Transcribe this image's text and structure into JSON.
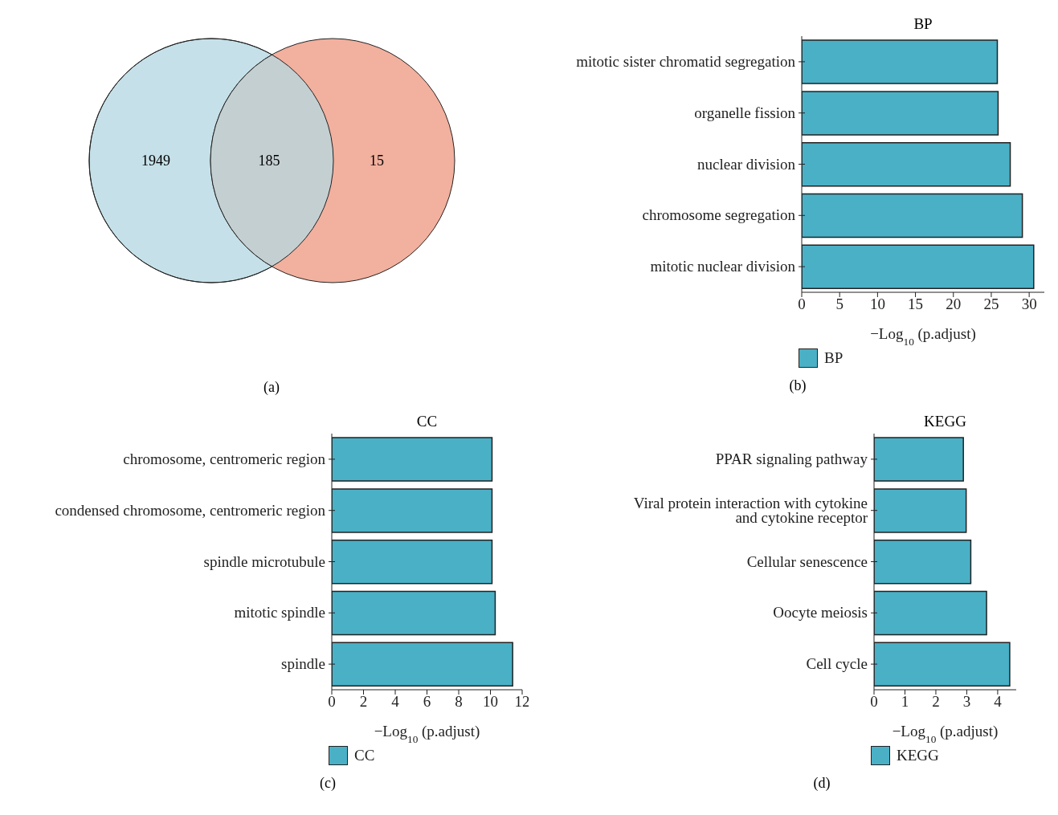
{
  "chart_data": [
    {
      "type": "other",
      "categories": [
        null,
        null,
        null
      ],
      "values": [
        1949,
        185,
        15
      ],
      "colors": [
        "#c5e0e8",
        "#c4cfd1",
        "#f2b09e"
      ],
      "data_labels": true,
      "annotations": [
        "(a)"
      ]
    },
    {
      "type": "bar",
      "orientation": "horizontal",
      "title": "BP",
      "xlabel": "−Log$_{10}$ (p.adjust)",
      "categories": [
        "mitotic sister chromatid segregation",
        "organelle fission",
        "nuclear division",
        "chromosome segregation",
        "mitotic nuclear division"
      ],
      "series": [
        {
          "name": "BP",
          "color": "#4ab0c6",
          "values": [
            25.8,
            25.9,
            27.5,
            29.1,
            30.6
          ]
        }
      ],
      "xlim": [
        0,
        32
      ],
      "xticks": [
        0,
        5,
        10,
        15,
        20,
        25,
        30
      ],
      "legend": "bottom",
      "annotations": [
        "(b)"
      ]
    },
    {
      "type": "bar",
      "orientation": "horizontal",
      "title": "CC",
      "xlabel": "−Log$_{10}$ (p.adjust)",
      "categories": [
        "chromosome, centromeric region",
        "condensed chromosome, centromeric region",
        "spindle microtubule",
        "mitotic spindle",
        "spindle"
      ],
      "series": [
        {
          "name": "CC",
          "color": "#4ab0c6",
          "values": [
            10.1,
            10.1,
            10.1,
            10.3,
            11.4
          ]
        }
      ],
      "xlim": [
        0,
        12
      ],
      "xticks": [
        0,
        2,
        4,
        6,
        8,
        10,
        12
      ],
      "legend": "bottom",
      "annotations": [
        "(c)"
      ]
    },
    {
      "type": "bar",
      "orientation": "horizontal",
      "title": "KEGG",
      "xlabel": "−Log$_{10}$ (p.adjust)",
      "categories": [
        "PPAR signaling pathway",
        "Viral protein interaction with cytokine and cytokine receptor",
        "Cellular senescence",
        "Oocyte meiosis",
        "Cell cycle"
      ],
      "series": [
        {
          "name": "KEGG",
          "color": "#4ab0c6",
          "values": [
            2.89,
            2.98,
            3.13,
            3.64,
            4.39
          ]
        }
      ],
      "xlim": [
        0,
        4.6
      ],
      "xticks": [
        0,
        1,
        2,
        3,
        4
      ],
      "legend": "bottom",
      "annotations": [
        "(d)"
      ]
    }
  ]
}
